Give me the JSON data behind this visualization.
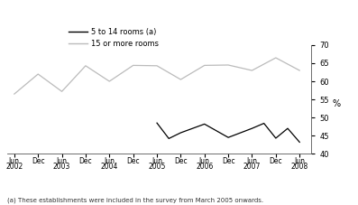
{
  "footnote": "(a) These establishments were included in the survey from March 2005 onwards.",
  "legend_labels": [
    "5 to 14 rooms (a)",
    "15 or more rooms"
  ],
  "legend_colors": [
    "#000000",
    "#bbbbbb"
  ],
  "ylim": [
    40,
    70
  ],
  "yticks": [
    40,
    45,
    50,
    55,
    60,
    65,
    70
  ],
  "tick_labels_top": [
    "Jun",
    "Dec",
    "Jun",
    "Dec",
    "Jun",
    "Dec",
    "Jun",
    "Dec",
    "Jun",
    "Dec",
    "Jun",
    "Dec",
    "Jun"
  ],
  "tick_labels_bot": [
    "2002",
    "",
    "2003",
    "",
    "2004",
    "",
    "2005",
    "",
    "2006",
    "",
    "2007",
    "",
    "2008"
  ],
  "gray_line_x": [
    0,
    1,
    2,
    3,
    4,
    5,
    6,
    7,
    8,
    9,
    10,
    11,
    12
  ],
  "gray_line_y": [
    56.5,
    62.0,
    57.2,
    64.3,
    60.0,
    64.4,
    64.3,
    60.5,
    64.4,
    64.5,
    63.0,
    66.5,
    63.0
  ],
  "black_line_x": [
    6.0,
    6.5,
    7,
    8,
    9,
    10,
    10.5,
    11,
    11.5,
    12
  ],
  "black_line_y": [
    48.5,
    44.2,
    45.8,
    48.2,
    44.5,
    47.0,
    48.4,
    44.3,
    47.0,
    43.2
  ],
  "background_color": "#ffffff",
  "line_color_gray": "#bbbbbb",
  "line_color_black": "#000000"
}
